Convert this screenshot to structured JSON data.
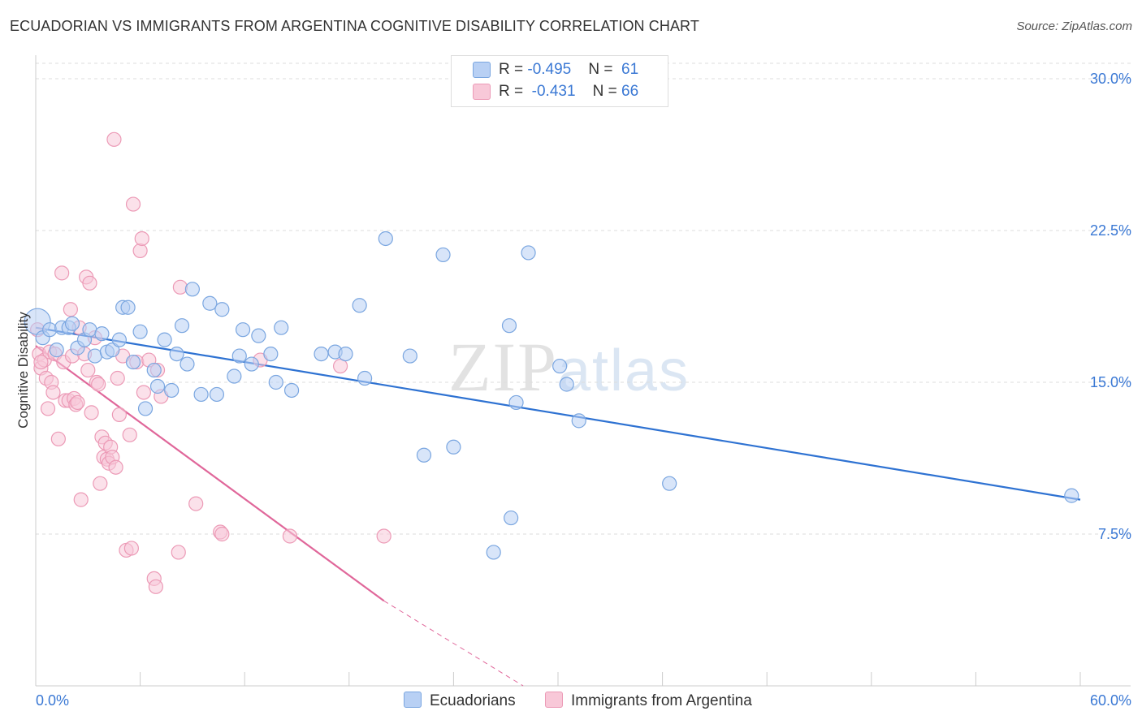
{
  "title": "ECUADORIAN VS IMMIGRANTS FROM ARGENTINA COGNITIVE DISABILITY CORRELATION CHART",
  "source": "Source: ZipAtlas.com",
  "watermark": {
    "zip": "ZIP",
    "atlas": "atlas"
  },
  "legend": {
    "blue": {
      "r_label": "R = ",
      "r_value": "-0.495",
      "n_label": "N = ",
      "n_value": "61"
    },
    "pink": {
      "r_label": "R = ",
      "r_value": "-0.431",
      "n_label": "N = ",
      "n_value": "66"
    }
  },
  "colors": {
    "blue_fill": "#b8d0f4",
    "blue_stroke": "#7aa6e0",
    "blue_line": "#2e72d2",
    "pink_fill": "#f8c8d8",
    "pink_stroke": "#ec9ab6",
    "pink_line": "#e0679a",
    "axis_text": "#3a78d4",
    "grid": "#dddddd"
  },
  "chart_data": {
    "type": "scatter",
    "title": "ECUADORIAN VS IMMIGRANTS FROM ARGENTINA COGNITIVE DISABILITY CORRELATION CHART",
    "xlabel": "",
    "ylabel": "Cognitive Disability",
    "xlim": [
      0,
      60
    ],
    "ylim": [
      0,
      31.5
    ],
    "x_tick_labels": [
      "0.0%",
      "60.0%"
    ],
    "y_ticks": [
      7.5,
      15.0,
      22.5,
      30.0
    ],
    "y_tick_labels": [
      "7.5%",
      "15.0%",
      "22.5%",
      "30.0%"
    ],
    "series": [
      {
        "name": "Ecuadorians",
        "color": "blue",
        "points": [
          [
            0.1,
            18.0
          ],
          [
            0.4,
            17.2
          ],
          [
            0.8,
            17.6
          ],
          [
            1.2,
            16.6
          ],
          [
            1.5,
            17.7
          ],
          [
            1.9,
            17.7
          ],
          [
            2.1,
            17.9
          ],
          [
            2.4,
            16.7
          ],
          [
            2.8,
            17.1
          ],
          [
            3.1,
            17.6
          ],
          [
            3.4,
            16.3
          ],
          [
            3.8,
            17.4
          ],
          [
            4.1,
            16.5
          ],
          [
            4.4,
            16.6
          ],
          [
            4.8,
            17.1
          ],
          [
            5.0,
            18.7
          ],
          [
            5.3,
            18.7
          ],
          [
            5.6,
            16.0
          ],
          [
            6.0,
            17.5
          ],
          [
            6.3,
            13.7
          ],
          [
            6.8,
            15.6
          ],
          [
            7.0,
            14.8
          ],
          [
            7.4,
            17.1
          ],
          [
            7.8,
            14.6
          ],
          [
            8.1,
            16.4
          ],
          [
            8.4,
            17.8
          ],
          [
            8.7,
            15.9
          ],
          [
            9.0,
            19.6
          ],
          [
            9.5,
            14.4
          ],
          [
            10.0,
            18.9
          ],
          [
            10.4,
            14.4
          ],
          [
            10.7,
            18.6
          ],
          [
            11.4,
            15.3
          ],
          [
            11.7,
            16.3
          ],
          [
            11.9,
            17.6
          ],
          [
            12.4,
            15.9
          ],
          [
            12.8,
            17.3
          ],
          [
            13.5,
            16.4
          ],
          [
            13.8,
            15.0
          ],
          [
            14.1,
            17.7
          ],
          [
            14.7,
            14.6
          ],
          [
            16.4,
            16.4
          ],
          [
            17.2,
            16.5
          ],
          [
            17.8,
            16.4
          ],
          [
            18.6,
            18.8
          ],
          [
            18.9,
            15.2
          ],
          [
            20.1,
            22.1
          ],
          [
            21.5,
            16.3
          ],
          [
            22.3,
            11.4
          ],
          [
            23.4,
            21.3
          ],
          [
            24.0,
            11.8
          ],
          [
            26.3,
            6.6
          ],
          [
            27.2,
            17.8
          ],
          [
            27.3,
            8.3
          ],
          [
            27.6,
            14.0
          ],
          [
            28.3,
            21.4
          ],
          [
            30.1,
            15.8
          ],
          [
            30.5,
            14.9
          ],
          [
            31.2,
            13.1
          ],
          [
            36.4,
            10.0
          ],
          [
            59.5,
            9.4
          ]
        ]
      },
      {
        "name": "Immigrants from Argentina",
        "color": "pink",
        "points": [
          [
            0.1,
            17.6
          ],
          [
            0.2,
            16.4
          ],
          [
            0.3,
            15.7
          ],
          [
            0.5,
            16.1
          ],
          [
            0.6,
            15.2
          ],
          [
            0.7,
            13.7
          ],
          [
            0.8,
            16.5
          ],
          [
            0.9,
            15.0
          ],
          [
            1.0,
            14.5
          ],
          [
            1.1,
            16.4
          ],
          [
            1.3,
            12.2
          ],
          [
            1.5,
            20.4
          ],
          [
            1.6,
            16.0
          ],
          [
            1.7,
            14.1
          ],
          [
            1.9,
            14.1
          ],
          [
            2.0,
            18.6
          ],
          [
            2.1,
            16.3
          ],
          [
            2.2,
            14.2
          ],
          [
            2.3,
            13.9
          ],
          [
            2.4,
            14.0
          ],
          [
            2.5,
            17.7
          ],
          [
            2.6,
            9.2
          ],
          [
            2.8,
            16.4
          ],
          [
            2.9,
            20.2
          ],
          [
            3.0,
            15.6
          ],
          [
            3.1,
            19.9
          ],
          [
            3.2,
            13.5
          ],
          [
            3.4,
            17.2
          ],
          [
            3.5,
            15.0
          ],
          [
            3.6,
            14.9
          ],
          [
            3.7,
            10.0
          ],
          [
            3.8,
            12.3
          ],
          [
            3.9,
            11.3
          ],
          [
            4.0,
            12.0
          ],
          [
            4.1,
            11.2
          ],
          [
            4.2,
            11.0
          ],
          [
            4.3,
            11.8
          ],
          [
            4.4,
            11.3
          ],
          [
            4.5,
            27.0
          ],
          [
            4.6,
            10.8
          ],
          [
            4.7,
            15.2
          ],
          [
            4.8,
            13.4
          ],
          [
            5.0,
            16.3
          ],
          [
            5.2,
            6.7
          ],
          [
            5.4,
            12.4
          ],
          [
            5.5,
            6.8
          ],
          [
            5.6,
            23.8
          ],
          [
            5.8,
            16.0
          ],
          [
            6.0,
            21.5
          ],
          [
            6.1,
            22.1
          ],
          [
            6.2,
            14.5
          ],
          [
            6.5,
            16.1
          ],
          [
            6.8,
            5.3
          ],
          [
            6.9,
            4.9
          ],
          [
            7.0,
            15.6
          ],
          [
            7.2,
            14.3
          ],
          [
            8.2,
            6.6
          ],
          [
            8.3,
            19.7
          ],
          [
            9.2,
            9.0
          ],
          [
            10.6,
            7.6
          ],
          [
            10.7,
            7.5
          ],
          [
            12.9,
            16.1
          ],
          [
            14.6,
            7.4
          ],
          [
            17.5,
            15.8
          ],
          [
            20.0,
            7.4
          ],
          [
            0.3,
            16.0
          ]
        ]
      }
    ],
    "trendlines": [
      {
        "series": "Ecuadorians",
        "x": [
          0,
          60
        ],
        "y": [
          17.7,
          9.2
        ],
        "style": "solid"
      },
      {
        "series": "Immigrants from Argentina",
        "x": [
          0,
          20
        ],
        "y": [
          16.8,
          4.2
        ],
        "style": "solid"
      },
      {
        "series": "Immigrants from Argentina",
        "x": [
          20,
          28
        ],
        "y": [
          4.2,
          0.0
        ],
        "style": "dashed"
      }
    ],
    "legend": [
      "Ecuadorians",
      "Immigrants from Argentina"
    ]
  }
}
